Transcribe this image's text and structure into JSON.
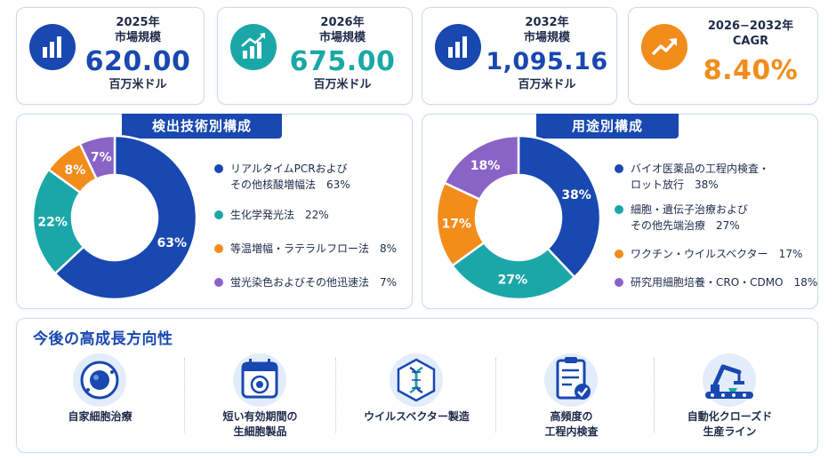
{
  "colors": {
    "navy": "#1848b0",
    "teal": "#1ba7a7",
    "orange": "#f28c1b",
    "purple": "#8a63c7"
  },
  "kpis": [
    {
      "label1": "2025年",
      "label2": "市場規模",
      "value": "620.00",
      "unit": "百万米ドル",
      "icon": "bar-chart-icon",
      "color": "#1848b0"
    },
    {
      "label1": "2026年",
      "label2": "市場規模",
      "value": "675.00",
      "unit": "百万米ドル",
      "icon": "growth-chart-icon",
      "color": "#1ba7a7"
    },
    {
      "label1": "2032年",
      "label2": "市場規模",
      "value": "1,095.16",
      "unit": "百万米ドル",
      "icon": "bar-chart-icon",
      "color": "#1848b0"
    },
    {
      "label1": "2026−2032年",
      "label2": "CAGR",
      "value": "8.40%",
      "unit": "",
      "icon": "trend-up-icon",
      "color": "#f28c1b"
    }
  ],
  "chart_data": [
    {
      "type": "pie",
      "title": "検出技術別構成",
      "categories": [
        "リアルタイムPCRおよびその他核酸増幅法",
        "生化学発光法",
        "等温増幅・ラテラルフロー法",
        "蛍光染色およびその他迅速法"
      ],
      "legend_lines": [
        [
          "リアルタイムPCRおよび",
          "その他核酸増幅法　63%"
        ],
        [
          "生化学発光法　22%"
        ],
        [
          "等温増幅・ラテラルフロー法　8%"
        ],
        [
          "蛍光染色およびその他迅速法　7%"
        ]
      ],
      "values": [
        63,
        22,
        8,
        7
      ],
      "labels": [
        "63%",
        "22%",
        "8%",
        "7%"
      ],
      "colors": [
        "#1848b0",
        "#1ba7a7",
        "#f28c1b",
        "#8a63c7"
      ],
      "legend": "right"
    },
    {
      "type": "pie",
      "title": "用途別構成",
      "categories": [
        "バイオ医薬品の工程内検査・ロット放行",
        "細胞・遺伝子治療およびその他先端治療",
        "ワクチン・ウイルスベクター",
        "研究用細胞培養・CRO・CDMO"
      ],
      "legend_lines": [
        [
          "バイオ医薬品の工程内検査・",
          "ロット放行　38%"
        ],
        [
          "細胞・遺伝子治療および",
          "その他先端治療　27%"
        ],
        [
          "ワクチン・ウイルスベクター　17%"
        ],
        [
          "研究用細胞培養・CRO・CDMO　18%"
        ]
      ],
      "values": [
        38,
        27,
        17,
        18
      ],
      "labels": [
        "38%",
        "27%",
        "17%",
        "18%"
      ],
      "colors": [
        "#1848b0",
        "#1ba7a7",
        "#f28c1b",
        "#8a63c7"
      ],
      "legend": "right"
    }
  ],
  "future": {
    "title": "今後の高成長方向性",
    "items": [
      {
        "label": "自家細胞治療",
        "icon": "cell-icon"
      },
      {
        "label": "短い有効期間の\n生細胞製品",
        "icon": "calendar-cell-icon"
      },
      {
        "label": "ウイルスベクター製造",
        "icon": "dna-icon"
      },
      {
        "label": "高頻度の\n工程内検査",
        "icon": "clipboard-check-icon"
      },
      {
        "label": "自動化クローズド\n生産ライン",
        "icon": "robot-arm-icon"
      }
    ]
  }
}
